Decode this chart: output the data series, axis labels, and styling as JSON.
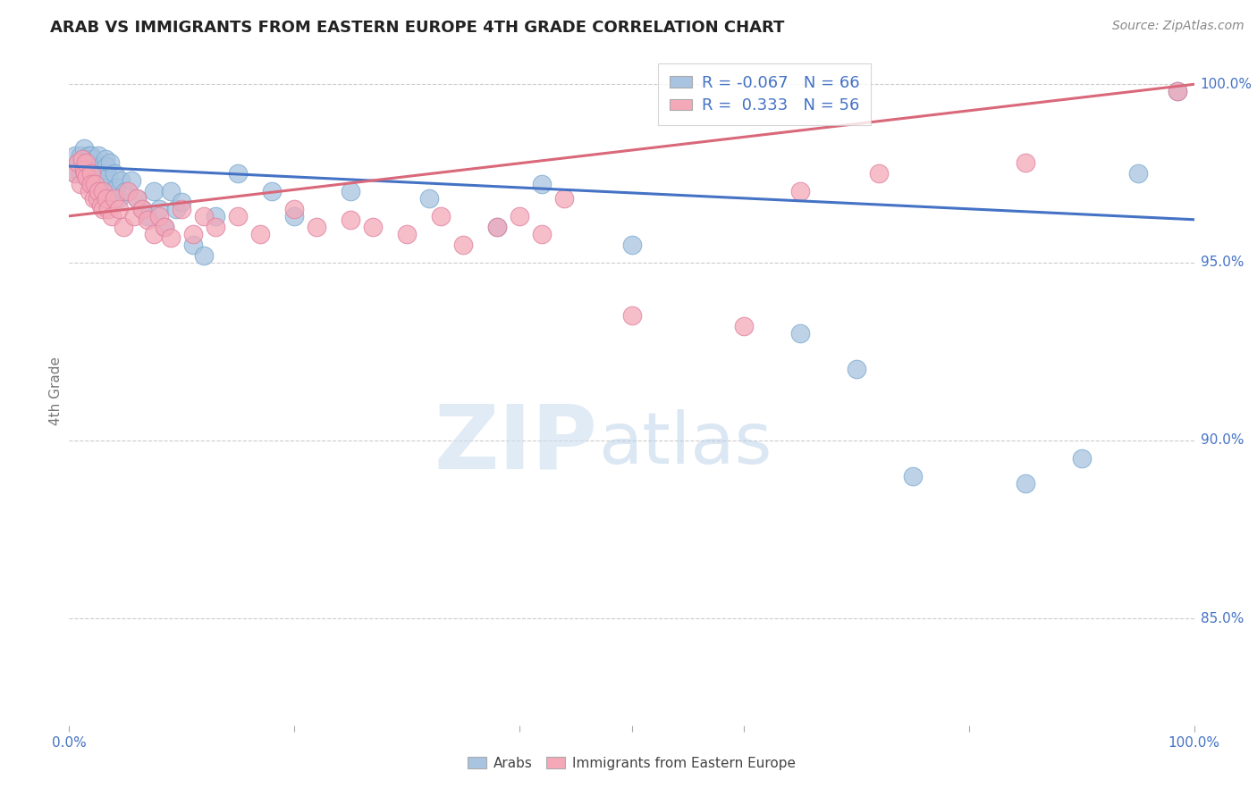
{
  "title": "ARAB VS IMMIGRANTS FROM EASTERN EUROPE 4TH GRADE CORRELATION CHART",
  "source": "Source: ZipAtlas.com",
  "ylabel": "4th Grade",
  "watermark_zip": "ZIP",
  "watermark_atlas": "atlas",
  "r_arab": -0.067,
  "n_arab": 66,
  "r_eastern": 0.333,
  "n_eastern": 56,
  "color_arab": "#a8c4e0",
  "color_eastern": "#f4a8b8",
  "line_color_arab": "#4472c4",
  "line_color_eastern": "#d9687a",
  "background_color": "#ffffff",
  "grid_color": "#cccccc",
  "title_color": "#222222",
  "axis_label_color": "#4472c4",
  "xlim": [
    0.0,
    1.0
  ],
  "ylim": [
    0.82,
    1.008
  ],
  "arab_line_y0": 0.977,
  "arab_line_y1": 0.962,
  "eastern_line_y0": 0.963,
  "eastern_line_y1": 1.0,
  "arab_x": [
    0.005,
    0.005,
    0.008,
    0.01,
    0.01,
    0.012,
    0.012,
    0.013,
    0.014,
    0.015,
    0.015,
    0.016,
    0.017,
    0.018,
    0.018,
    0.02,
    0.02,
    0.021,
    0.022,
    0.022,
    0.023,
    0.025,
    0.025,
    0.026,
    0.027,
    0.028,
    0.03,
    0.03,
    0.032,
    0.033,
    0.035,
    0.036,
    0.038,
    0.04,
    0.042,
    0.044,
    0.046,
    0.05,
    0.055,
    0.06,
    0.065,
    0.07,
    0.075,
    0.08,
    0.085,
    0.09,
    0.095,
    0.1,
    0.11,
    0.12,
    0.13,
    0.15,
    0.18,
    0.2,
    0.25,
    0.32,
    0.38,
    0.42,
    0.5,
    0.65,
    0.7,
    0.75,
    0.85,
    0.9,
    0.95,
    0.985
  ],
  "arab_y": [
    0.98,
    0.975,
    0.978,
    0.98,
    0.975,
    0.979,
    0.977,
    0.982,
    0.975,
    0.978,
    0.974,
    0.976,
    0.98,
    0.979,
    0.975,
    0.98,
    0.978,
    0.975,
    0.979,
    0.976,
    0.974,
    0.977,
    0.973,
    0.98,
    0.975,
    0.977,
    0.975,
    0.971,
    0.979,
    0.977,
    0.974,
    0.978,
    0.97,
    0.975,
    0.971,
    0.968,
    0.973,
    0.97,
    0.973,
    0.968,
    0.965,
    0.963,
    0.97,
    0.965,
    0.96,
    0.97,
    0.965,
    0.967,
    0.955,
    0.952,
    0.963,
    0.975,
    0.97,
    0.963,
    0.97,
    0.968,
    0.96,
    0.972,
    0.955,
    0.93,
    0.92,
    0.89,
    0.888,
    0.895,
    0.975,
    0.998
  ],
  "eastern_x": [
    0.005,
    0.008,
    0.01,
    0.012,
    0.013,
    0.014,
    0.015,
    0.016,
    0.018,
    0.02,
    0.02,
    0.022,
    0.023,
    0.025,
    0.026,
    0.028,
    0.03,
    0.03,
    0.033,
    0.035,
    0.038,
    0.04,
    0.044,
    0.048,
    0.052,
    0.058,
    0.06,
    0.065,
    0.07,
    0.075,
    0.08,
    0.085,
    0.09,
    0.1,
    0.11,
    0.12,
    0.13,
    0.15,
    0.17,
    0.2,
    0.22,
    0.25,
    0.27,
    0.3,
    0.33,
    0.35,
    0.38,
    0.4,
    0.42,
    0.44,
    0.5,
    0.6,
    0.65,
    0.72,
    0.85,
    0.985
  ],
  "eastern_y": [
    0.975,
    0.978,
    0.972,
    0.979,
    0.976,
    0.975,
    0.978,
    0.974,
    0.97,
    0.975,
    0.972,
    0.968,
    0.972,
    0.968,
    0.97,
    0.966,
    0.97,
    0.965,
    0.968,
    0.965,
    0.963,
    0.968,
    0.965,
    0.96,
    0.97,
    0.963,
    0.968,
    0.965,
    0.962,
    0.958,
    0.963,
    0.96,
    0.957,
    0.965,
    0.958,
    0.963,
    0.96,
    0.963,
    0.958,
    0.965,
    0.96,
    0.962,
    0.96,
    0.958,
    0.963,
    0.955,
    0.96,
    0.963,
    0.958,
    0.968,
    0.935,
    0.932,
    0.97,
    0.975,
    0.978,
    0.998
  ]
}
